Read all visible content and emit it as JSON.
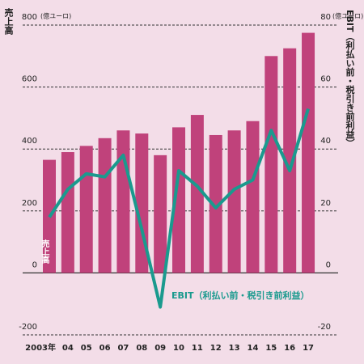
{
  "chart_data": {
    "type": "bar-line",
    "y_label": "売上高",
    "y_unit": "(億ユーロ)",
    "y2_label": "EBIT（利払い前・税引き前利益）",
    "y2_unit": "(億ユーロ)",
    "categories": [
      "2003年",
      "04",
      "05",
      "06",
      "07",
      "08",
      "09",
      "10",
      "11",
      "12",
      "13",
      "14",
      "15",
      "16",
      "17"
    ],
    "series": [
      {
        "name": "売上高",
        "type": "bar",
        "color": "#c0427b",
        "values": [
          365,
          390,
          410,
          435,
          460,
          450,
          380,
          470,
          510,
          445,
          460,
          490,
          700,
          725,
          775
        ]
      },
      {
        "name": "EBIT（利払い前・税引き前利益）",
        "type": "line",
        "axis": "y2",
        "color": "#1a9a8e",
        "values": [
          18,
          27,
          32,
          31,
          38,
          14,
          -11,
          33,
          28,
          21,
          27,
          30,
          46,
          33,
          53
        ]
      }
    ],
    "ylim": [
      -200,
      800
    ],
    "yticks": [
      -200,
      0,
      200,
      400,
      600,
      800
    ],
    "y2lim": [
      -20,
      80
    ],
    "y2ticks": [
      -20,
      0,
      20,
      40,
      60,
      80
    ],
    "grid": true
  }
}
